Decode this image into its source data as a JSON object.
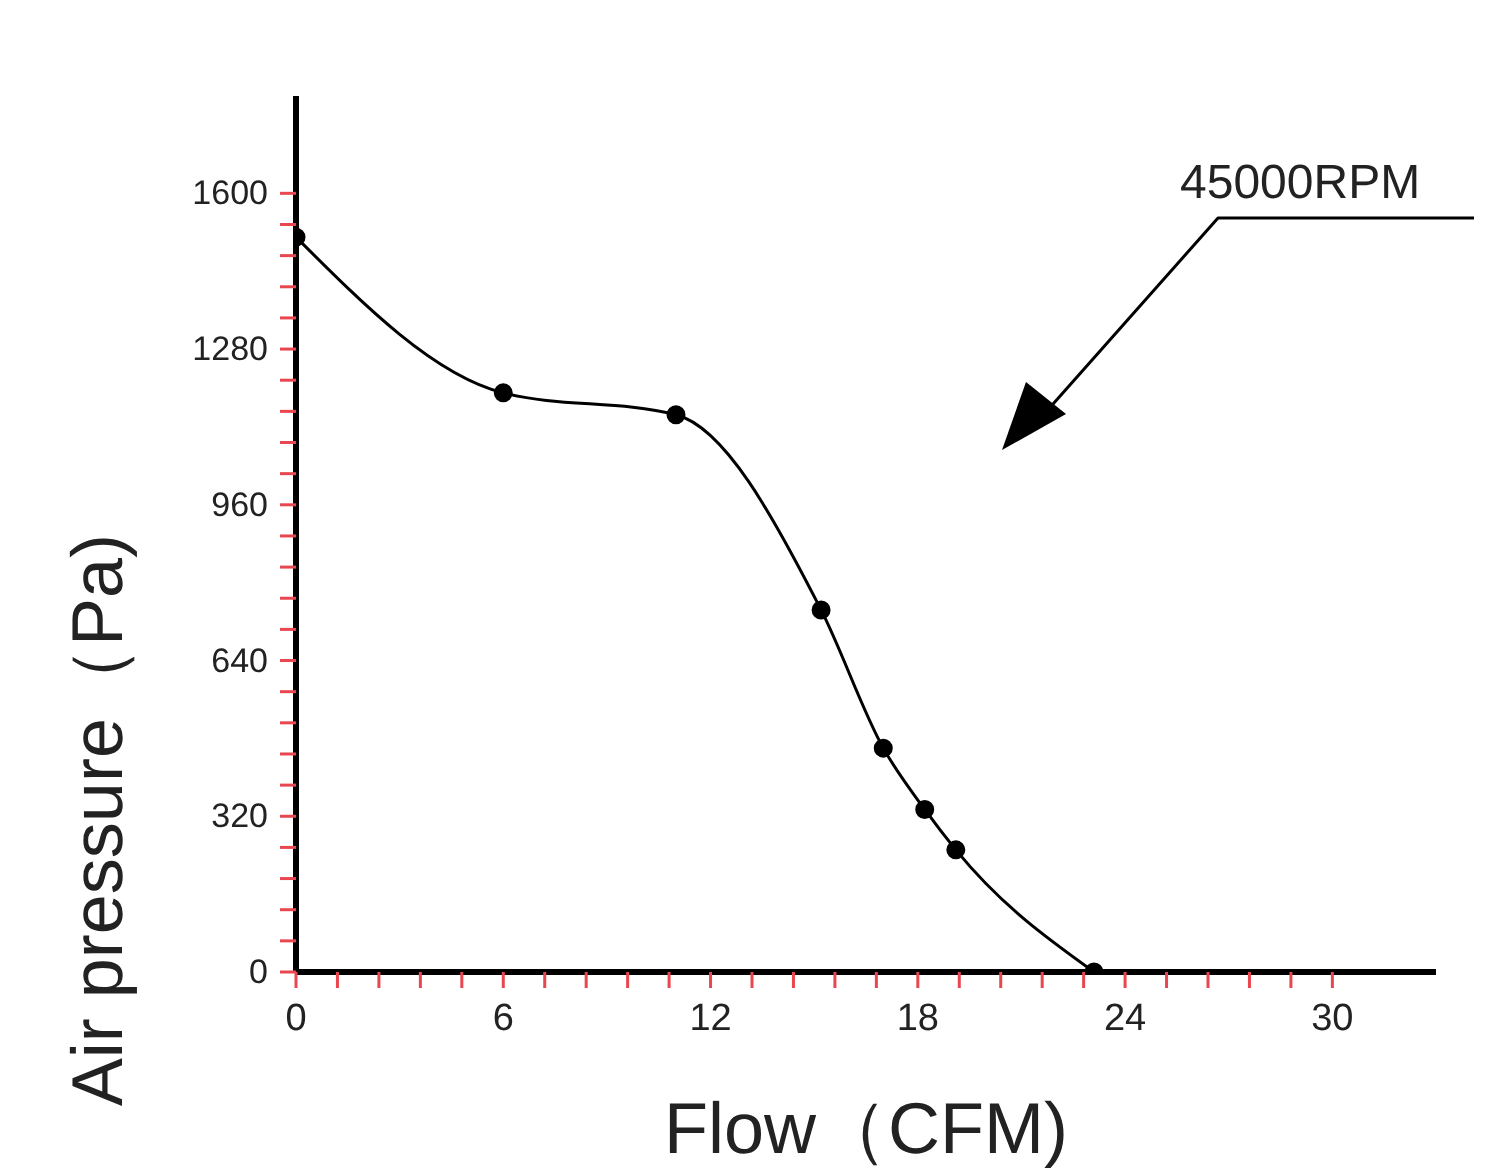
{
  "chart_data": {
    "type": "line",
    "xlabel": "Flow（CFM)",
    "ylabel": "Air pressure（Pa)",
    "annotations": [
      "45000RPM"
    ],
    "x": [
      0,
      6,
      11,
      15.2,
      17,
      18.2,
      19.1,
      23.1
    ],
    "series": [
      {
        "color": "#000000",
        "values": [
          1510,
          1190,
          1145,
          744,
          460,
          334,
          251,
          0
        ]
      }
    ],
    "marker": "circle",
    "line_style": "solid",
    "grid": false,
    "legend": false,
    "xlim": [
      0,
      33
    ],
    "ylim": [
      0,
      1800
    ],
    "xticks": [
      0,
      {
        "value": 1.2,
        "label": null
      },
      {
        "value": 2.4,
        "label": null
      },
      {
        "value": 3.6,
        "label": null
      },
      {
        "value": 4.8,
        "label": null
      },
      6,
      {
        "value": 7.2,
        "label": null
      },
      {
        "value": 8.4,
        "label": null
      },
      {
        "value": 9.6,
        "label": null
      },
      {
        "value": 10.8,
        "label": null
      },
      12,
      {
        "value": 13.2,
        "label": null
      },
      {
        "value": 14.4,
        "label": null
      },
      {
        "value": 15.6,
        "label": null
      },
      {
        "value": 16.8,
        "label": null
      },
      18,
      {
        "value": 19.2,
        "label": null
      },
      {
        "value": 20.4,
        "label": null
      },
      {
        "value": 21.6,
        "label": null
      },
      {
        "value": 22.8,
        "label": null
      },
      24,
      {
        "value": 25.2,
        "label": null
      },
      {
        "value": 26.4,
        "label": null
      },
      {
        "value": 27.6,
        "label": null
      },
      {
        "value": 28.8,
        "label": null
      },
      30
    ],
    "yticks": [
      0,
      {
        "value": 64,
        "label": null
      },
      {
        "value": 128,
        "label": null
      },
      {
        "value": 192,
        "label": null
      },
      {
        "value": 256,
        "label": null
      },
      320,
      {
        "value": 384,
        "label": null
      },
      {
        "value": 448,
        "label": null
      },
      {
        "value": 512,
        "label": null
      },
      {
        "value": 576,
        "label": null
      },
      640,
      {
        "value": 704,
        "label": null
      },
      {
        "value": 768,
        "label": null
      },
      {
        "value": 832,
        "label": null
      },
      {
        "value": 896,
        "label": null
      },
      960,
      {
        "value": 1024,
        "label": null
      },
      {
        "value": 1088,
        "label": null
      },
      {
        "value": 1152,
        "label": null
      },
      {
        "value": 1216,
        "label": null
      },
      1280,
      {
        "value": 1344,
        "label": null
      },
      {
        "value": 1408,
        "label": null
      },
      {
        "value": 1472,
        "label": null
      },
      {
        "value": 1536,
        "label": null
      },
      1600
    ]
  }
}
